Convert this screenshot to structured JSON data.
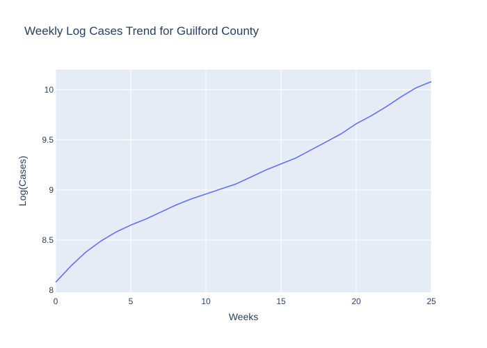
{
  "chart_data": {
    "type": "line",
    "title": "Weekly Log Cases Trend for Guilford County",
    "xlabel": "Weeks",
    "ylabel": "Log(Cases)",
    "xlim": [
      0,
      25
    ],
    "ylim": [
      7.98,
      10.2
    ],
    "grid": true,
    "x_ticks": [
      0,
      5,
      10,
      15,
      20,
      25
    ],
    "y_ticks": [
      8.5,
      9,
      9.5,
      10
    ],
    "y_tick_labels": [
      "8.5",
      "9",
      "9.5",
      "10"
    ],
    "series": [
      {
        "color": "#636efa",
        "x": [
          0,
          1,
          2,
          3,
          4,
          5,
          6,
          7,
          8,
          9,
          10,
          11,
          12,
          13,
          14,
          15,
          16,
          17,
          18,
          19,
          20,
          21,
          22,
          23,
          24,
          25
        ],
        "y": [
          8.08,
          8.24,
          8.38,
          8.49,
          8.58,
          8.65,
          8.71,
          8.78,
          8.85,
          8.91,
          8.96,
          9.01,
          9.06,
          9.13,
          9.2,
          9.26,
          9.32,
          9.4,
          9.48,
          9.56,
          9.66,
          9.74,
          9.83,
          9.93,
          10.02,
          10.08
        ]
      }
    ]
  },
  "colors": {
    "plot_bg": "#e5ecf6",
    "grid": "#ffffff",
    "text": "#2a3f5f",
    "line": "#636efa"
  }
}
